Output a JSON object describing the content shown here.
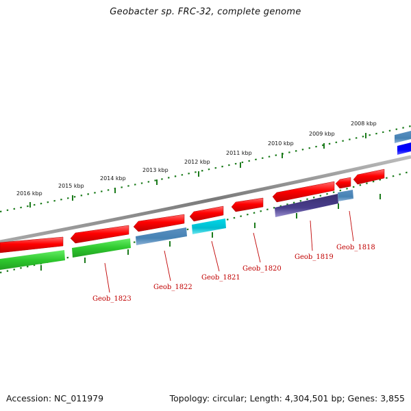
{
  "title": "Geobacter sp. FRC-32, complete genome",
  "footer": {
    "accession": "Accession: NC_011979",
    "topology": "Topology: circular; Length: 4,304,501 bp; Genes: 3,855"
  },
  "scale_labels": [
    "2016 kbp",
    "2015 kbp",
    "2014 kbp",
    "2013 kbp",
    "2012 kbp",
    "2011 kbp",
    "2010 kbp",
    "2009 kbp",
    "2008 kbp"
  ],
  "gene_labels": [
    "Geob_1823",
    "Geob_1822",
    "Geob_1821",
    "Geob_1820",
    "Geob_1819",
    "Geob_1818"
  ],
  "colors": {
    "backbone": "#8a8a8a",
    "tick": "#1a7a1a",
    "label": "#c00000",
    "cds_red": "#ff0000",
    "green": "#33cc33",
    "steelblue": "#4682b4",
    "cyan": "#00c8d8",
    "darkslate": "#483d8b",
    "blue": "#0000ff"
  }
}
